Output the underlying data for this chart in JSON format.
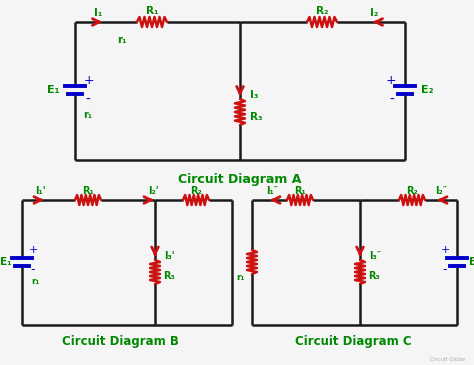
{
  "title_color": "#008800",
  "wire_color": "#1a1a1a",
  "resistor_color": "#cc1111",
  "arrow_color": "#cc1111",
  "battery_color": "#0000cc",
  "label_color": "#008800",
  "bg_color": "#f5f5f5",
  "diagram_a_title": "Circuit Diagram A",
  "diagram_b_title": "Circuit Diagram B",
  "diagram_c_title": "Circuit Diagram C",
  "watermark": "Circuit Globe"
}
